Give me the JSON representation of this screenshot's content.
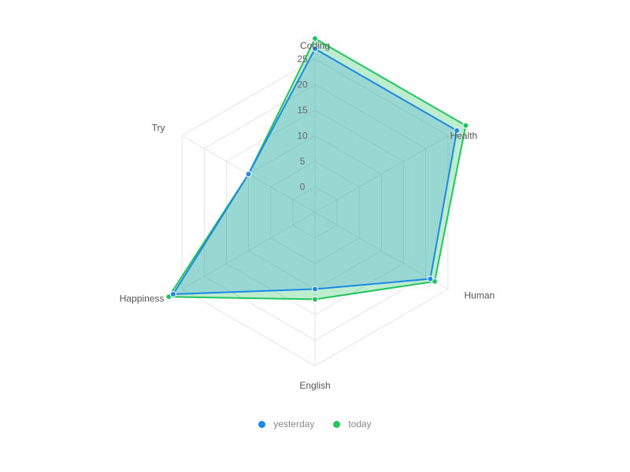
{
  "chart_data": {
    "type": "radar",
    "categories": [
      "Coding",
      "Health",
      "Human",
      "English",
      "Happiness",
      "Try"
    ],
    "series": [
      {
        "name": "yesterday",
        "color": "#1e88e5",
        "values": [
          27,
          27,
          21,
          10,
          27,
          10
        ]
      },
      {
        "name": "today",
        "color": "#22c55e",
        "values": [
          29,
          29,
          22,
          12,
          28,
          10
        ]
      }
    ],
    "radial_ticks": [
      "0",
      "5",
      "10",
      "15",
      "20",
      "25"
    ],
    "rlim": [
      -5,
      25
    ],
    "grid": true,
    "legend_position": "bottom"
  },
  "legend": {
    "items": [
      {
        "label": "yesterday",
        "color": "#1e88e5"
      },
      {
        "label": "today",
        "color": "#22c55e"
      }
    ]
  }
}
